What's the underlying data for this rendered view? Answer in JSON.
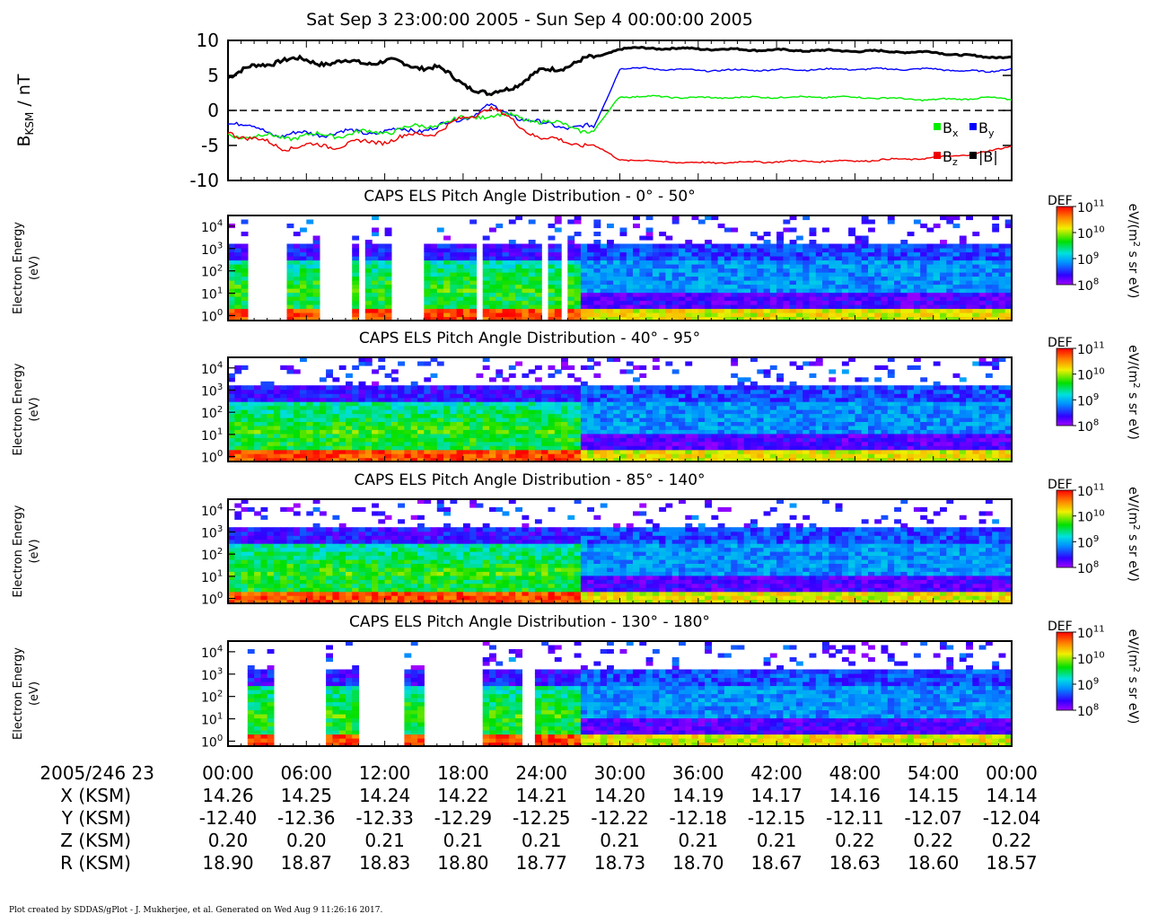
{
  "title": "Sat Sep 3 23:00:00 2005 - Sun Sep 4 00:00:00 2005",
  "chart_data": [
    {
      "type": "line",
      "ylabel_main": "B",
      "ylabel_sub": "KSM",
      "ylabel_unit": " / nT",
      "ylim": [
        -10,
        10
      ],
      "yticks": [
        "10",
        "5",
        "0",
        "-5",
        "-10"
      ],
      "x": [
        0,
        4,
        8,
        12,
        16,
        20,
        24,
        28,
        30,
        32,
        36,
        42,
        48,
        54,
        58,
        60
      ],
      "series": [
        {
          "name": "|B|",
          "color": "#000000",
          "values": [
            5,
            7.3,
            6.8,
            7.0,
            6.0,
            2.0,
            5.5,
            7.5,
            8.8,
            8.9,
            8.8,
            8.6,
            8.5,
            8.3,
            7.6,
            7.7
          ]
        },
        {
          "name": "B",
          "sub": "y",
          "color": "#0000ff",
          "values": [
            -1.5,
            -3.5,
            -3.2,
            -3.0,
            -2.5,
            0.5,
            -2.0,
            -2.5,
            6.0,
            6.0,
            5.7,
            5.8,
            5.9,
            5.9,
            5.5,
            6.0
          ]
        },
        {
          "name": "B",
          "sub": "x",
          "color": "#00ee00",
          "values": [
            -3.5,
            -3.8,
            -3.5,
            -3.0,
            -2.0,
            -0.5,
            -1.5,
            -3.0,
            2.0,
            2.0,
            1.8,
            1.9,
            1.9,
            1.5,
            1.8,
            1.6
          ]
        },
        {
          "name": "B",
          "sub": "z",
          "color": "#ee0000",
          "values": [
            -3.0,
            -5.2,
            -5.0,
            -4.3,
            -3.0,
            0.5,
            -4.0,
            -5.0,
            -7.0,
            -7.2,
            -7.5,
            -7.3,
            -7.2,
            -6.8,
            -6.0,
            -5.0
          ]
        }
      ]
    },
    {
      "type": "heatmap",
      "title": "CAPS ELS Pitch Angle Distribution - 0° - 50°",
      "ylabel": "Electron Energy",
      "yunit": "(eV)",
      "yscale": "log",
      "ylim": [
        0.6,
        30000
      ],
      "yticks": [
        "10⁴",
        "10³",
        "10²",
        "10¹",
        "10⁰"
      ],
      "data_gaps_min": [
        [
          1.5,
          4.4
        ],
        [
          6.9,
          9.7
        ],
        [
          10.2,
          10.5
        ],
        [
          12.7,
          15.1
        ],
        [
          15.8,
          16.0
        ],
        [
          19.2,
          19.6
        ],
        [
          24.0,
          24.4
        ],
        [
          25.3,
          26.0
        ]
      ],
      "colorbar": {
        "label": "DEF",
        "unit": "eV/(m² s sr eV)",
        "ticks": [
          "10¹¹",
          "10¹⁰",
          "10⁹",
          "10⁸"
        ],
        "range": [
          100000000.0,
          100000000000.0
        ]
      }
    },
    {
      "type": "heatmap",
      "title": "CAPS ELS Pitch Angle Distribution - 40° - 95°",
      "ylabel": "Electron Energy",
      "yunit": "(eV)",
      "yscale": "log",
      "ylim": [
        0.6,
        30000
      ],
      "yticks": [
        "10⁴",
        "10³",
        "10²",
        "10¹",
        "10⁰"
      ],
      "data_gaps_min": [],
      "colorbar": {
        "label": "DEF",
        "unit": "eV/(m² s sr eV)",
        "ticks": [
          "10¹¹",
          "10¹⁰",
          "10⁹",
          "10⁸"
        ],
        "range": [
          100000000.0,
          100000000000.0
        ]
      }
    },
    {
      "type": "heatmap",
      "title": "CAPS ELS Pitch Angle Distribution - 85° - 140°",
      "ylabel": "Electron Energy",
      "yunit": "(eV)",
      "yscale": "log",
      "ylim": [
        0.6,
        30000
      ],
      "yticks": [
        "10⁴",
        "10³",
        "10²",
        "10¹",
        "10⁰"
      ],
      "data_gaps_min": [],
      "colorbar": {
        "label": "DEF",
        "unit": "eV/(m² s sr eV)",
        "ticks": [
          "10¹¹",
          "10¹⁰",
          "10⁹",
          "10⁸"
        ],
        "range": [
          100000000.0,
          100000000000.0
        ]
      }
    },
    {
      "type": "heatmap",
      "title": "CAPS ELS Pitch Angle Distribution - 130° - 180°",
      "ylabel": "Electron Energy",
      "yunit": "(eV)",
      "yscale": "log",
      "ylim": [
        0.6,
        30000
      ],
      "yticks": [
        "10⁴",
        "10³",
        "10²",
        "10¹",
        "10⁰"
      ],
      "data_gaps_min": [
        [
          0,
          1.5
        ],
        [
          3.6,
          7.5
        ],
        [
          9.8,
          13.5
        ],
        [
          15.1,
          19.5
        ],
        [
          21.8,
          22.1
        ],
        [
          22.4,
          23.5
        ],
        [
          23.8,
          24.0
        ]
      ],
      "colorbar": {
        "label": "DEF",
        "unit": "eV/(m² s sr eV)",
        "ticks": [
          "10¹¹",
          "10¹⁰",
          "10⁹",
          "10⁸"
        ],
        "range": [
          100000000.0,
          100000000000.0
        ]
      }
    }
  ],
  "ephemeris": {
    "rows": [
      {
        "label": "2005/246 23",
        "values": [
          "00:00",
          "06:00",
          "12:00",
          "18:00",
          "24:00",
          "30:00",
          "36:00",
          "42:00",
          "48:00",
          "54:00",
          "00:00"
        ]
      },
      {
        "label": "X (KSM)",
        "values": [
          "14.26",
          "14.25",
          "14.24",
          "14.22",
          "14.21",
          "14.20",
          "14.19",
          "14.17",
          "14.16",
          "14.15",
          "14.14"
        ]
      },
      {
        "label": "Y (KSM)",
        "values": [
          "-12.40",
          "-12.36",
          "-12.33",
          "-12.29",
          "-12.25",
          "-12.22",
          "-12.18",
          "-12.15",
          "-12.11",
          "-12.07",
          "-12.04"
        ]
      },
      {
        "label": "Z (KSM)",
        "values": [
          "0.20",
          "0.20",
          "0.21",
          "0.21",
          "0.21",
          "0.21",
          "0.21",
          "0.21",
          "0.22",
          "0.22",
          "0.22"
        ]
      },
      {
        "label": "R (KSM)",
        "values": [
          "18.90",
          "18.87",
          "18.83",
          "18.80",
          "18.77",
          "18.73",
          "18.70",
          "18.67",
          "18.63",
          "18.60",
          "18.57"
        ]
      }
    ]
  },
  "footer": "Plot created by SDDAS/gPlot - J. Mukherjee, et al.  Generated on Wed Aug 9 11:26:16 2017."
}
